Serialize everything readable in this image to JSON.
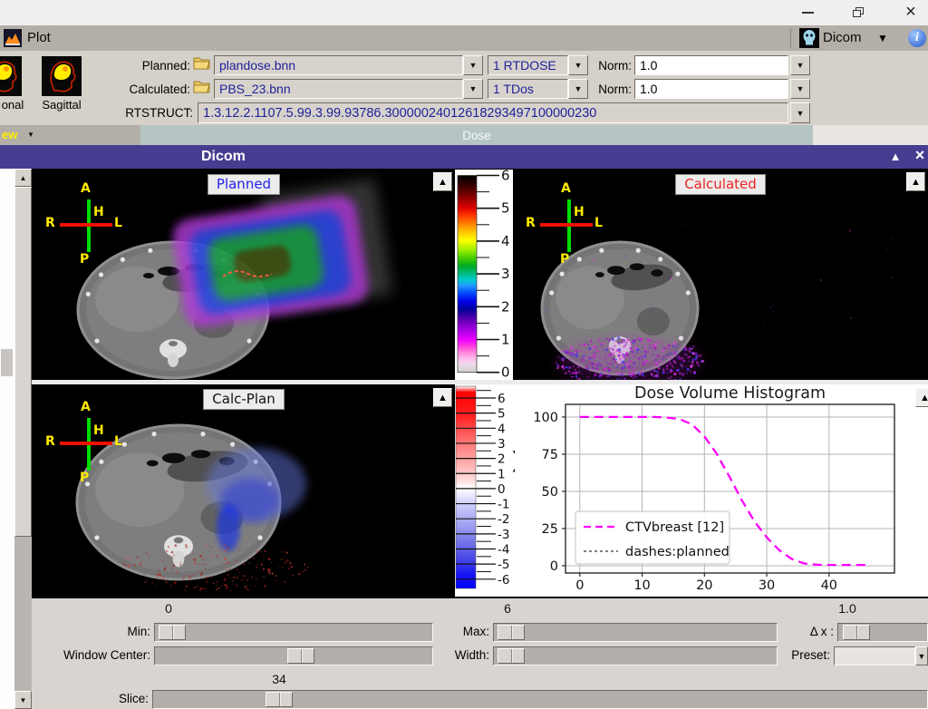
{
  "icons": {
    "close": "×",
    "dropdown": "▼",
    "collapse": "▲",
    "scroll_up": "▲",
    "scroll_down": "▼",
    "info": "i",
    "menu_down": "▼"
  },
  "titlebar": {},
  "plotbar": {
    "title": "Plot",
    "right_title": "Dicom"
  },
  "view_buttons": [
    {
      "label": "onal"
    },
    {
      "label": "Sagittal"
    }
  ],
  "view_menu": {
    "label": "ew"
  },
  "form": {
    "planned": {
      "label": "Planned:",
      "file": "plandose.bnn",
      "dose": "1 RTDOSE",
      "norm_label": "Norm:",
      "norm": "1.0"
    },
    "calculated": {
      "label": "Calculated:",
      "file": "PBS_23.bnn",
      "dose": "1 TDos",
      "norm_label": "Norm:",
      "norm": "1.0"
    },
    "rtstruct": {
      "label": "RTSTRUCT:",
      "value": "1.3.12.2.1107.5.99.3.99.93786.30000024012618293497100000230"
    }
  },
  "dose_tab": {
    "label": "Dose"
  },
  "dicom_bar": {
    "title": "Dicom"
  },
  "panels": {
    "planned": "Planned",
    "calculated": "Calculated",
    "calcplan": "Calc-Plan",
    "orientation": {
      "a": "A",
      "p": "P",
      "r": "R",
      "l": "L",
      "h": "H"
    }
  },
  "colorbar1": {
    "ticks": [
      6,
      5,
      4,
      3,
      2,
      1,
      0
    ]
  },
  "colorbar2": {
    "ticks": [
      6,
      5,
      4,
      3,
      2,
      1,
      0,
      -1,
      -2,
      -3,
      -4,
      -5,
      -6
    ]
  },
  "chart_data": {
    "type": "line",
    "title": "Dose Volume Histogram",
    "xlabel": "",
    "ylabel": "Volume [%]",
    "xlim": [
      -2.3,
      50.5
    ],
    "ylim": [
      -4.9,
      108.5
    ],
    "xticks": [
      0,
      10,
      20,
      30,
      40
    ],
    "yticks": [
      0,
      25,
      50,
      75,
      100
    ],
    "grid": true,
    "legend_position": "lower-left",
    "series": [
      {
        "name": "CTVbreast [12]",
        "color": "#ff00ff",
        "style": "dashed",
        "x": [
          0,
          2,
          4,
          6,
          8,
          10,
          12,
          14,
          16,
          18,
          20,
          22,
          24,
          25,
          26,
          28,
          30,
          32,
          34,
          36,
          38,
          40,
          42,
          44,
          46
        ],
        "y": [
          100,
          100,
          100,
          100,
          100,
          100,
          100,
          99.6,
          98.6,
          95,
          87,
          75,
          60,
          52,
          44,
          30,
          19,
          10.5,
          4.5,
          1.5,
          0.7,
          0.5,
          0.5,
          0.5,
          0.5
        ]
      },
      {
        "name": "dashes:planned",
        "color": "#333333",
        "style": "dotted",
        "x": [],
        "y": []
      }
    ]
  },
  "controls": {
    "min": {
      "label": "Min:",
      "value": "0"
    },
    "max": {
      "label": "Max:",
      "value": "6"
    },
    "dx": {
      "label": "Δ x :",
      "value": "1.0"
    },
    "window_center": {
      "label": "Window Center:"
    },
    "width": {
      "label": "Width:"
    },
    "preset": {
      "label": "Preset:"
    },
    "slice": {
      "label": "Slice:",
      "value": "34"
    }
  }
}
